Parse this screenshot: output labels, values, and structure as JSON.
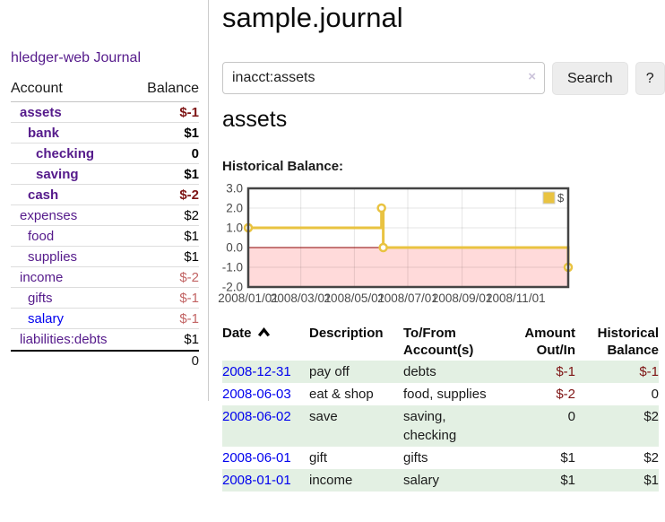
{
  "app": {
    "brand": "hledger-web"
  },
  "colors": {
    "visited_link": "#551A8B",
    "unvisited_link": "#0000EE",
    "negative_dark": "#7E1414",
    "negative_light": "#C26464",
    "row_stripe_green": "#E3F0E3",
    "chart_series_gold": "#E9C341"
  },
  "sidebar": {
    "journal_link": "Journal",
    "accounts": {
      "header": {
        "account": "Account",
        "balance": "Balance"
      },
      "rows": [
        {
          "name": "assets",
          "balance": "$-1",
          "indent": 1,
          "bold": true,
          "balance_tone": "negative-dark",
          "link_tone": "visited"
        },
        {
          "name": "bank",
          "balance": "$1",
          "indent": 2,
          "bold": true,
          "balance_tone": "normal",
          "link_tone": "visited"
        },
        {
          "name": "checking",
          "balance": "0",
          "indent": 3,
          "bold": true,
          "balance_tone": "normal",
          "link_tone": "visited"
        },
        {
          "name": "saving",
          "balance": "$1",
          "indent": 3,
          "bold": true,
          "balance_tone": "normal",
          "link_tone": "visited"
        },
        {
          "name": "cash",
          "balance": "$-2",
          "indent": 2,
          "bold": true,
          "balance_tone": "negative-dark",
          "link_tone": "visited"
        },
        {
          "name": "expenses",
          "balance": "$2",
          "indent": 1,
          "bold": false,
          "balance_tone": "normal",
          "link_tone": "visited"
        },
        {
          "name": "food",
          "balance": "$1",
          "indent": 2,
          "bold": false,
          "balance_tone": "normal",
          "link_tone": "visited"
        },
        {
          "name": "supplies",
          "balance": "$1",
          "indent": 2,
          "bold": false,
          "balance_tone": "normal",
          "link_tone": "visited"
        },
        {
          "name": "income",
          "balance": "$-2",
          "indent": 1,
          "bold": false,
          "balance_tone": "negative-light",
          "link_tone": "visited"
        },
        {
          "name": "gifts",
          "balance": "$-1",
          "indent": 2,
          "bold": false,
          "balance_tone": "negative-light",
          "link_tone": "visited"
        },
        {
          "name": "salary",
          "balance": "$-1",
          "indent": 2,
          "bold": false,
          "balance_tone": "negative-light",
          "link_tone": "unvisited"
        },
        {
          "name": "liabilities:debts",
          "balance": "$1",
          "indent": 1,
          "bold": false,
          "balance_tone": "normal",
          "link_tone": "visited"
        }
      ],
      "total": "0"
    }
  },
  "header": {
    "title": "sample.journal"
  },
  "search": {
    "value": "inacct:assets",
    "clear_label": "×",
    "search_button": "Search",
    "help_button": "?"
  },
  "account_page": {
    "heading": "assets",
    "chart_title": "Historical Balance:"
  },
  "chart_data": {
    "type": "line",
    "step": true,
    "title": "Historical Balance",
    "x": [
      "2008-01-01",
      "2008-06-01",
      "2008-06-03",
      "2008-12-31"
    ],
    "series": [
      {
        "name": "$",
        "values": [
          1,
          2,
          0,
          -1
        ]
      }
    ],
    "xlim": [
      "2008-01-01",
      "2008-12-31"
    ],
    "ylim": [
      -2,
      3
    ],
    "x_tick_labels": [
      "2008/01/01",
      "2008/03/01",
      "2008/05/01",
      "2008/07/01",
      "2008/09/01",
      "2008/11/01"
    ],
    "y_tick_values": [
      3,
      2,
      1,
      0,
      -1,
      -2
    ],
    "y_tick_labels": [
      "3.0",
      "2.0",
      "1.0",
      "0.0",
      "-1.0",
      "-2.0"
    ],
    "legend": {
      "label": "$",
      "position": "top-right"
    },
    "grid": true,
    "colors": {
      "series": "#E9C341",
      "point_fill": "#FFFFFF",
      "negative_region": "#FFDADA",
      "zero_line": "#8B0000",
      "border": "#444444",
      "grid": "rgba(0,0,0,0.10)",
      "tick_text": "#4a4a4a"
    }
  },
  "register": {
    "columns": [
      {
        "lines": [
          "Date",
          ""
        ],
        "align": "left",
        "sort": "asc"
      },
      {
        "lines": [
          "Description",
          ""
        ],
        "align": "left"
      },
      {
        "lines": [
          "To/From",
          "Account(s)"
        ],
        "align": "left"
      },
      {
        "lines": [
          "Amount",
          "Out/In"
        ],
        "align": "right"
      },
      {
        "lines": [
          "Historical",
          "Balance"
        ],
        "align": "right"
      }
    ],
    "rows": [
      {
        "date": "2008-12-31",
        "description": "pay off",
        "accounts": "debts",
        "amount": "$-1",
        "amount_tone": "negative",
        "balance": "$-1",
        "balance_tone": "negative"
      },
      {
        "date": "2008-06-03",
        "description": "eat & shop",
        "accounts": "food, supplies",
        "amount": "$-2",
        "amount_tone": "negative",
        "balance": "0",
        "balance_tone": "normal"
      },
      {
        "date": "2008-06-02",
        "description": "save",
        "accounts": "saving, checking",
        "amount": "0",
        "amount_tone": "normal",
        "balance": "$2",
        "balance_tone": "normal"
      },
      {
        "date": "2008-06-01",
        "description": "gift",
        "accounts": "gifts",
        "amount": "$1",
        "amount_tone": "normal",
        "balance": "$2",
        "balance_tone": "normal"
      },
      {
        "date": "2008-01-01",
        "description": "income",
        "accounts": "salary",
        "amount": "$1",
        "amount_tone": "normal",
        "balance": "$1",
        "balance_tone": "normal"
      }
    ]
  }
}
